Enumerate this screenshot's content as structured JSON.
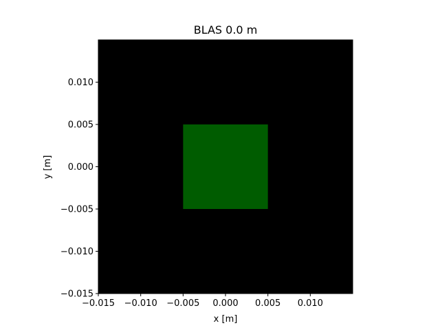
{
  "chart_data": {
    "type": "heatmap",
    "title": "BLAS 0.0 m",
    "xlabel": "x [m]",
    "ylabel": "y [m]",
    "xlim": [
      -0.015,
      0.015
    ],
    "ylim": [
      -0.015,
      0.015
    ],
    "x_ticks": [
      -0.015,
      -0.01,
      -0.005,
      0.0,
      0.005,
      0.01
    ],
    "x_tick_labels": [
      "−0.015",
      "−0.010",
      "−0.005",
      "0.000",
      "0.005",
      "0.010"
    ],
    "y_ticks": [
      -0.015,
      -0.01,
      -0.005,
      0.0,
      0.005,
      0.01
    ],
    "y_tick_labels": [
      "−0.015",
      "−0.010",
      "−0.005",
      "0.000",
      "0.005",
      "0.010"
    ],
    "grid": false,
    "colors": {
      "background": "#000000",
      "beam": "#005c00",
      "axes": "#000000"
    },
    "beam_region": {
      "x": [
        -0.005,
        0.005
      ],
      "y": [
        -0.005,
        0.005
      ]
    }
  }
}
